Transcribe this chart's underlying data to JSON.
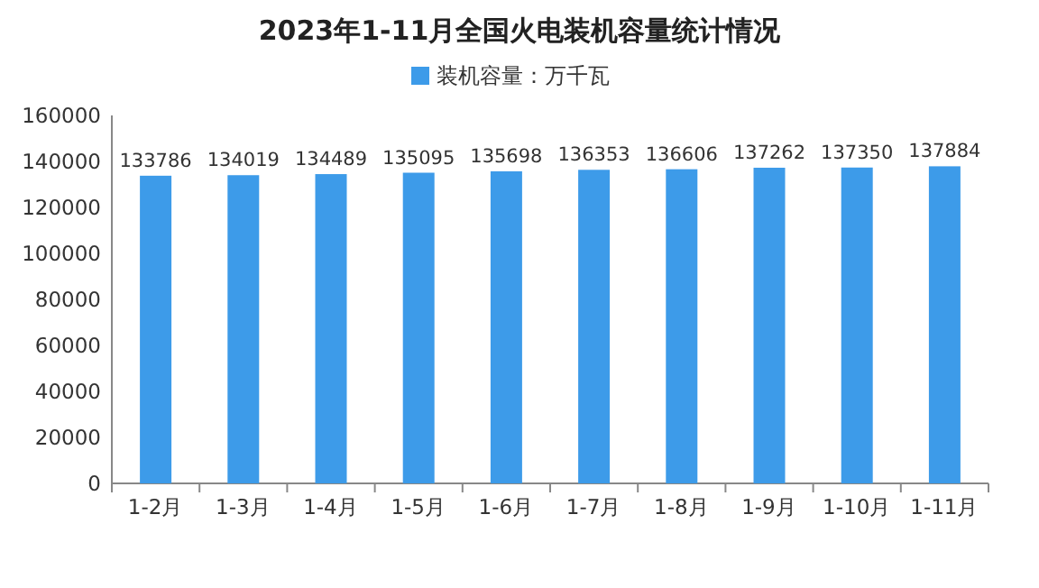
{
  "chart_data": {
    "type": "bar",
    "title": "2023年1-11月全国火电装机容量统计情况",
    "categories": [
      "1-2月",
      "1-3月",
      "1-4月",
      "1-5月",
      "1-6月",
      "1-7月",
      "1-8月",
      "1-9月",
      "1-10月",
      "1-11月"
    ],
    "series": [
      {
        "name": "装机容量：万千瓦",
        "color": "#3d9be9",
        "values": [
          133786,
          134019,
          134489,
          135095,
          135698,
          136353,
          136606,
          137262,
          137350,
          137884
        ]
      }
    ],
    "ylim": [
      0,
      160000
    ],
    "yticks": [
      0,
      20000,
      40000,
      60000,
      80000,
      100000,
      120000,
      140000,
      160000
    ],
    "data_labels": true,
    "legend": "top",
    "grid": false
  }
}
